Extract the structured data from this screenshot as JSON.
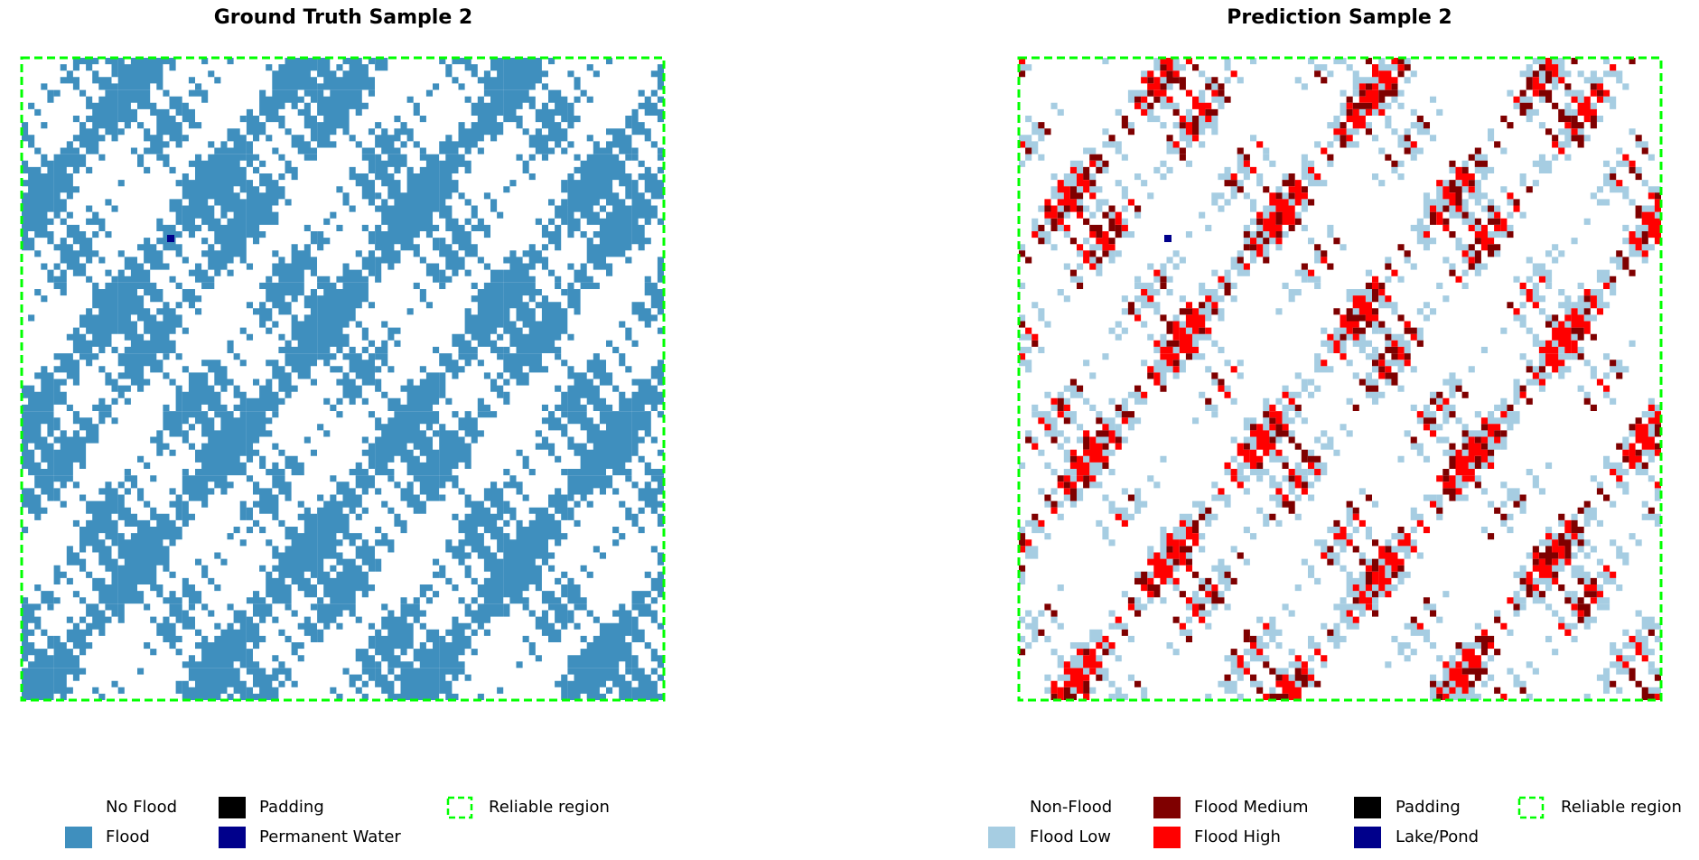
{
  "panels": [
    {
      "title": "Ground Truth Sample 2",
      "legend": [
        {
          "label": "No Flood",
          "color": "#ffffff"
        },
        {
          "label": "Flood",
          "color": "#3f8fbe"
        },
        {
          "label": "Padding",
          "color": "#000000"
        },
        {
          "label": "Permanent Water",
          "color": "#00008b"
        },
        {
          "label": "Reliable region",
          "color": "#00ff00"
        }
      ]
    },
    {
      "title": "Prediction Sample 2",
      "legend": [
        {
          "label": "Non-Flood",
          "color": "#ffffff"
        },
        {
          "label": "Flood Low",
          "color": "#a6cde2"
        },
        {
          "label": "Flood Medium",
          "color": "#7f0000"
        },
        {
          "label": "Flood High",
          "color": "#ff0000"
        },
        {
          "label": "Padding",
          "color": "#000000"
        },
        {
          "label": "Lake/Pond",
          "color": "#00008b"
        },
        {
          "label": "Reliable region",
          "color": "#00ff00"
        }
      ]
    }
  ]
}
